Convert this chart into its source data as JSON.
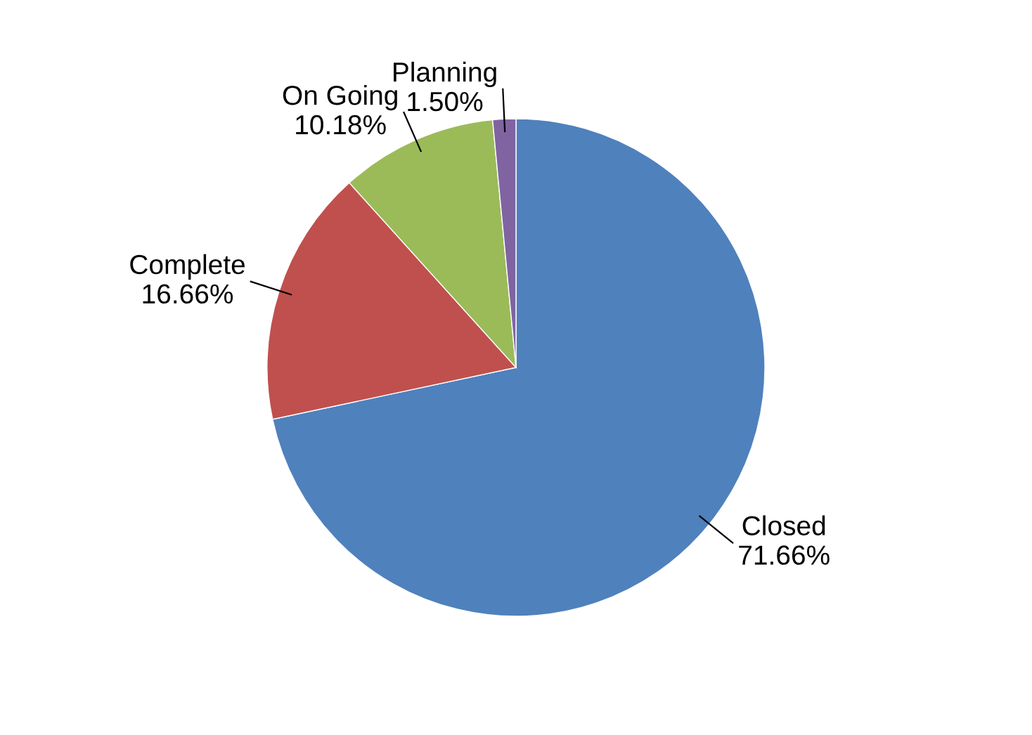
{
  "chart_data": {
    "type": "pie",
    "categories": [
      "Closed",
      "Complete",
      "On Going",
      "Planning"
    ],
    "values": [
      71.66,
      16.66,
      10.18,
      1.5
    ],
    "value_labels": [
      "71.66%",
      "16.66%",
      "10.18%",
      "1.50%"
    ],
    "colors": [
      "#4f81bd",
      "#c0504d",
      "#9bbb59",
      "#8064a2"
    ]
  }
}
